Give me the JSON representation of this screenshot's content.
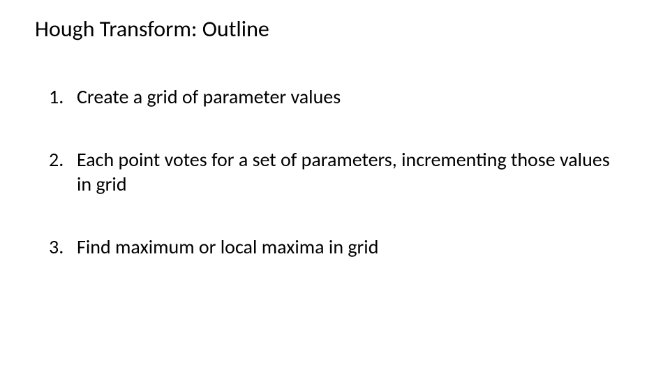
{
  "slide": {
    "title": "Hough Transform: Outline",
    "title_fontsize": 32,
    "title_color": "#000000",
    "background_color": "#ffffff",
    "body_fontsize": 28,
    "body_color": "#000000",
    "steps": [
      {
        "text": "Create a grid of parameter values"
      },
      {
        "text": "Each point votes for a set of parameters, incrementing those values in grid"
      },
      {
        "text": "Find maximum or local maxima in grid"
      }
    ]
  }
}
